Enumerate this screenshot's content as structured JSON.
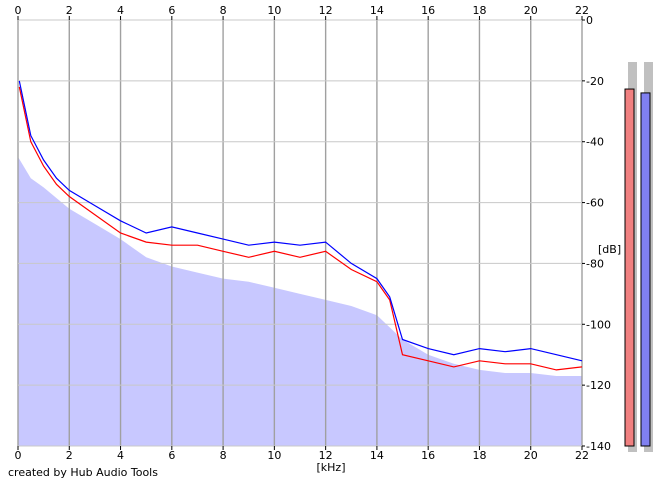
{
  "chart_data": {
    "type": "line",
    "xlabel": "[kHz]",
    "ylabel": "[dB]",
    "xlim": [
      0,
      22
    ],
    "ylim": [
      -140,
      0
    ],
    "x_ticks": [
      0,
      2,
      4,
      6,
      8,
      10,
      12,
      14,
      16,
      18,
      20,
      22
    ],
    "y_ticks": [
      0,
      -20,
      -40,
      -60,
      -80,
      -100,
      -120,
      -140
    ],
    "grid": true,
    "series": [
      {
        "color": "#ff0000",
        "x": [
          0.05,
          0.5,
          1,
          1.5,
          2,
          3,
          4,
          5,
          6,
          7,
          8,
          9,
          10,
          11,
          12,
          13,
          14,
          14.5,
          15,
          16,
          17,
          18,
          19,
          20,
          21,
          22
        ],
        "values": [
          -22,
          -40,
          -48,
          -54,
          -58,
          -64,
          -70,
          -73,
          -74,
          -74,
          -76,
          -78,
          -76,
          -78,
          -76,
          -82,
          -86,
          -92,
          -110,
          -112,
          -114,
          -112,
          -113,
          -113,
          -115,
          -114
        ]
      },
      {
        "color": "#0000ff",
        "x": [
          0.05,
          0.5,
          1,
          1.5,
          2,
          3,
          4,
          5,
          6,
          7,
          8,
          9,
          10,
          11,
          12,
          13,
          14,
          14.5,
          15,
          16,
          17,
          18,
          19,
          20,
          21,
          22
        ],
        "values": [
          -20,
          -38,
          -46,
          -52,
          -56,
          -61,
          -66,
          -70,
          -68,
          -70,
          -72,
          -74,
          -73,
          -74,
          -73,
          -80,
          -85,
          -91,
          -105,
          -108,
          -110,
          -108,
          -109,
          -108,
          -110,
          -112
        ]
      }
    ],
    "fill": {
      "color": "#c8c8ff",
      "x": [
        0,
        0.5,
        1,
        2,
        3,
        4,
        5,
        6,
        7,
        8,
        9,
        10,
        11,
        12,
        13,
        14,
        15,
        16,
        17,
        18,
        19,
        20,
        21,
        22
      ],
      "values": [
        -45,
        -52,
        -55,
        -62,
        -67,
        -72,
        -78,
        -81,
        -83,
        -85,
        -86,
        -88,
        -90,
        -92,
        -94,
        -97,
        -105,
        -110,
        -113,
        -115,
        -116,
        -116,
        -117,
        -117
      ]
    },
    "meters": [
      {
        "color": "#f08080",
        "level": 0.92
      },
      {
        "color": "#8080f0",
        "level": 0.91
      }
    ]
  },
  "footer": {
    "credit": "created by Hub Audio Tools"
  }
}
